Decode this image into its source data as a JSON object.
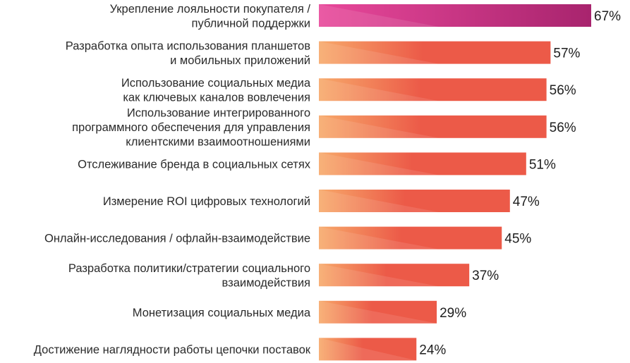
{
  "chart_data": {
    "type": "bar",
    "orientation": "horizontal",
    "categories": [
      [
        "Укрепление лояльности покупателя /",
        "публичной поддержки"
      ],
      [
        "Разработка опыта использования планшетов",
        "и мобильных приложений"
      ],
      [
        "Использование социальных медиа",
        "как ключевых каналов вовлечения"
      ],
      [
        "Использование интегрированного",
        "программного обеспечения для управления",
        "клиентскими взаимоотношениями"
      ],
      [
        "Отслеживание бренда в социальных сетях"
      ],
      [
        "Измерение ROI цифровых технологий"
      ],
      [
        "Онлайн-исследования / офлайн-взаимодействие"
      ],
      [
        "Разработка политики/стратегии социального",
        "взаимодействия"
      ],
      [
        "Монетизация социальных медиа"
      ],
      [
        "Достижение наглядности работы цепочки поставок"
      ]
    ],
    "values": [
      67,
      57,
      56,
      56,
      51,
      47,
      45,
      37,
      29,
      24
    ],
    "value_labels": [
      "67%",
      "57%",
      "56%",
      "56%",
      "51%",
      "47%",
      "45%",
      "37%",
      "29%",
      "24%"
    ],
    "xlim": [
      0,
      67
    ],
    "grid": false,
    "colors": {
      "highlight_start": "#e8489a",
      "highlight_end": "#a8246e",
      "bar_start": "#f7a96a",
      "bar_end": "#ec5a48"
    }
  }
}
